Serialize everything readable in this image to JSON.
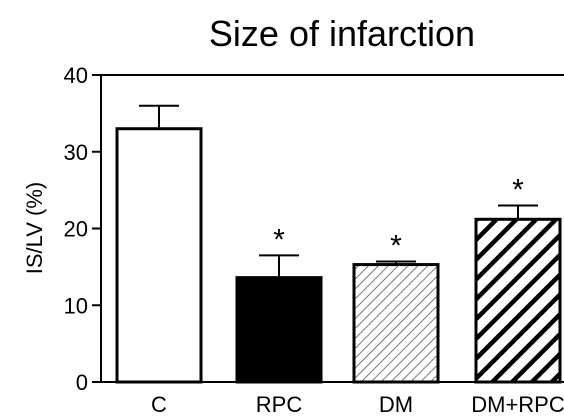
{
  "chart_data": {
    "type": "bar",
    "title": "Size of infarction",
    "xlabel": "",
    "ylabel": "IS/LV (%)",
    "ylim": [
      0,
      40
    ],
    "yticks": [
      0,
      10,
      20,
      30,
      40
    ],
    "grid": false,
    "categories": [
      "C",
      "RPC",
      "DM",
      "DM+RPC"
    ],
    "values": [
      33,
      13.6,
      15.3,
      21.2
    ],
    "errors": [
      3,
      2.9,
      0.4,
      1.8
    ],
    "significance": [
      "",
      "*",
      "*",
      "*"
    ],
    "fills": [
      "white",
      "black",
      "thin-diagonal-hatch",
      "bold-diagonal-hatch"
    ]
  }
}
